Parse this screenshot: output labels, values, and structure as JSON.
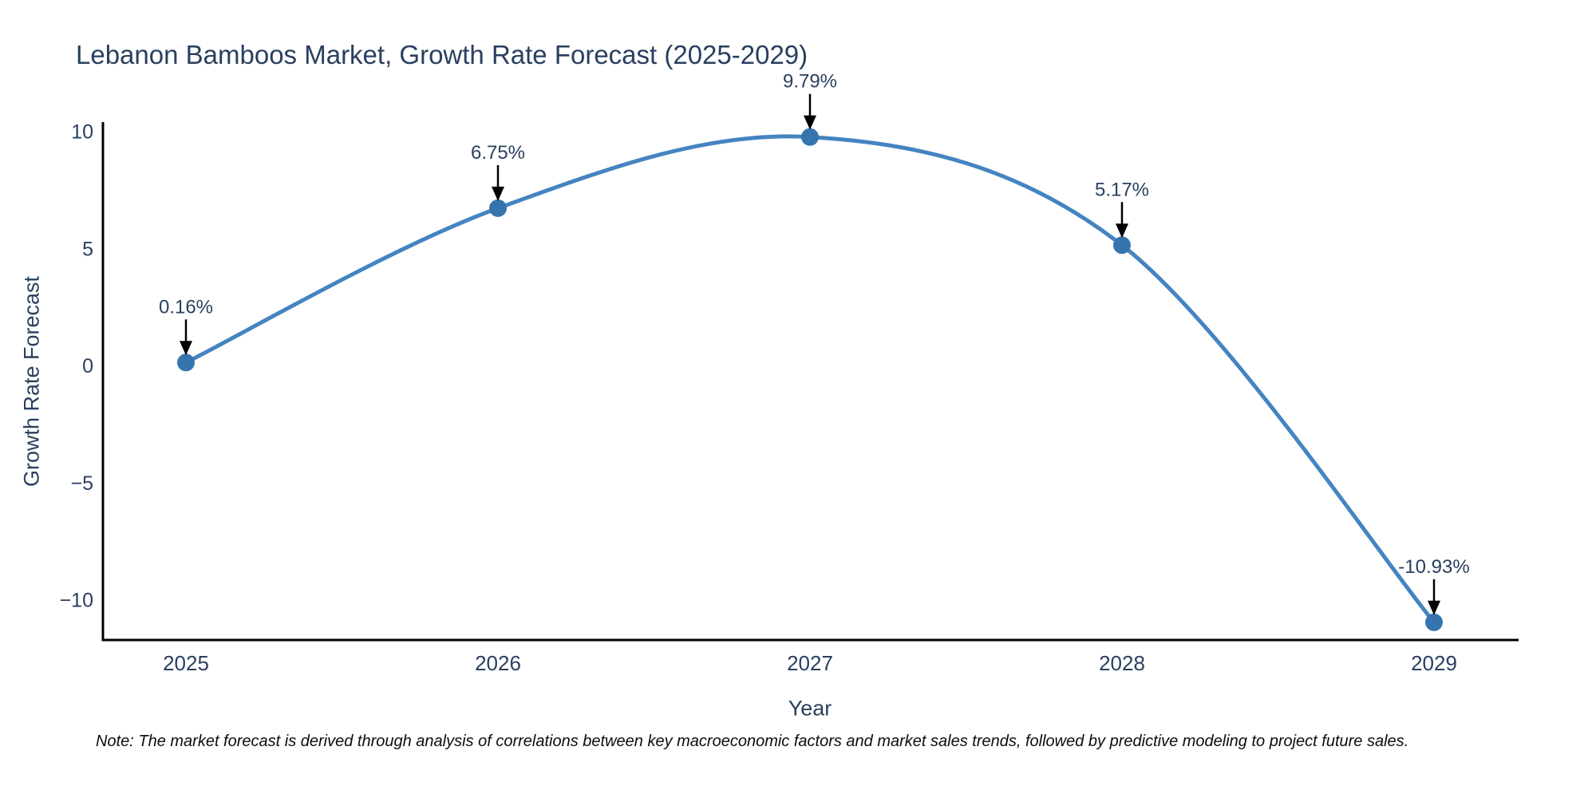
{
  "figure": {
    "title": "Lebanon Bamboos Market, Growth Rate Forecast (2025-2029)",
    "note": "Note: The market forecast is derived through analysis of correlations between key macroeconomic factors and market sales trends, followed by predictive modeling to project future sales."
  },
  "chart_data": {
    "type": "line",
    "title": "Lebanon Bamboos Market, Growth Rate Forecast (2025-2029)",
    "xlabel": "Year",
    "ylabel": "Growth Rate Forecast",
    "mode": "lines+markers",
    "line_shape": "spline",
    "grid": false,
    "legend": "none",
    "x": [
      2025,
      2026,
      2027,
      2028,
      2029
    ],
    "y": [
      0.16,
      6.75,
      9.79,
      5.17,
      -10.93
    ],
    "point_labels": [
      "0.16%",
      "6.75%",
      "9.79%",
      "5.17%",
      "-10.93%"
    ],
    "x_tick_labels": [
      "2025",
      "2026",
      "2027",
      "2028",
      "2029"
    ],
    "y_tick_values": [
      10,
      5,
      0,
      -5,
      -10
    ],
    "y_tick_labels": [
      "10",
      "5",
      "0",
      "−5",
      "−10"
    ],
    "ylim": [
      -11.9,
      10.6
    ],
    "colors": {
      "line": "#4484c1",
      "marker": "#3674ad",
      "axis": "#000000",
      "tick_label": "#2a3f5f",
      "annotation_text": "#2a3f5f",
      "annotation_arrow": "#000000",
      "background": "#ffffff"
    }
  }
}
